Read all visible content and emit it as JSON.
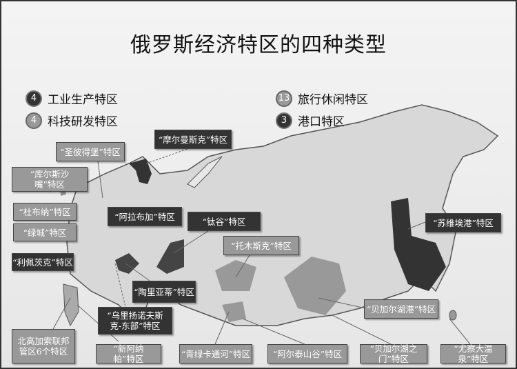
{
  "title": "俄罗斯经济特区的四种类型",
  "legend": [
    {
      "count": "4",
      "label": "工业生产特区",
      "tone": "dark"
    },
    {
      "count": "4",
      "label": "科技研发特区",
      "tone": "light"
    },
    {
      "count": "13",
      "label": "旅行休闲特区",
      "tone": "light"
    },
    {
      "count": "3",
      "label": "港口特区",
      "tone": "dark"
    }
  ],
  "colors": {
    "industrial": "#333333",
    "tech": "#999999",
    "tourism": "#999999",
    "port": "#333333",
    "map_base": "#d8d8d8"
  },
  "zones": [
    {
      "label": "“摩尔曼斯克”特区",
      "tone": "dark"
    },
    {
      "label": "“圣彼得堡”特区",
      "tone": "light"
    },
    {
      "label": "“库尔斯沙嘴”特区",
      "tone": "light"
    },
    {
      "label": "“杜布纳”特区",
      "tone": "light"
    },
    {
      "label": "“绿城”特区",
      "tone": "light"
    },
    {
      "label": "“阿拉布加”特区",
      "tone": "dark"
    },
    {
      "label": "“钛谷”特区",
      "tone": "dark"
    },
    {
      "label": "“托木斯克”特区",
      "tone": "light"
    },
    {
      "label": "“利佩茨克”特区",
      "tone": "dark"
    },
    {
      "label": "“陶里亚蒂”特区",
      "tone": "dark"
    },
    {
      "label": "“乌里扬诺夫斯克-东部”特区",
      "tone": "dark"
    },
    {
      "label": "北高加索联邦管区6个特区",
      "tone": "light"
    },
    {
      "label": "“新阿纳帕”特区",
      "tone": "light"
    },
    {
      "label": "“青绿卡通河”特区",
      "tone": "light"
    },
    {
      "label": "“阿尔泰山谷”特区",
      "tone": "light"
    },
    {
      "label": "“贝加尔湖之门”特区",
      "tone": "light"
    },
    {
      "label": "“尤察大温泉”特区",
      "tone": "light"
    },
    {
      "label": "“贝加尔湖港”特区",
      "tone": "light"
    },
    {
      "label": "“苏维埃港”特区",
      "tone": "dark"
    }
  ]
}
